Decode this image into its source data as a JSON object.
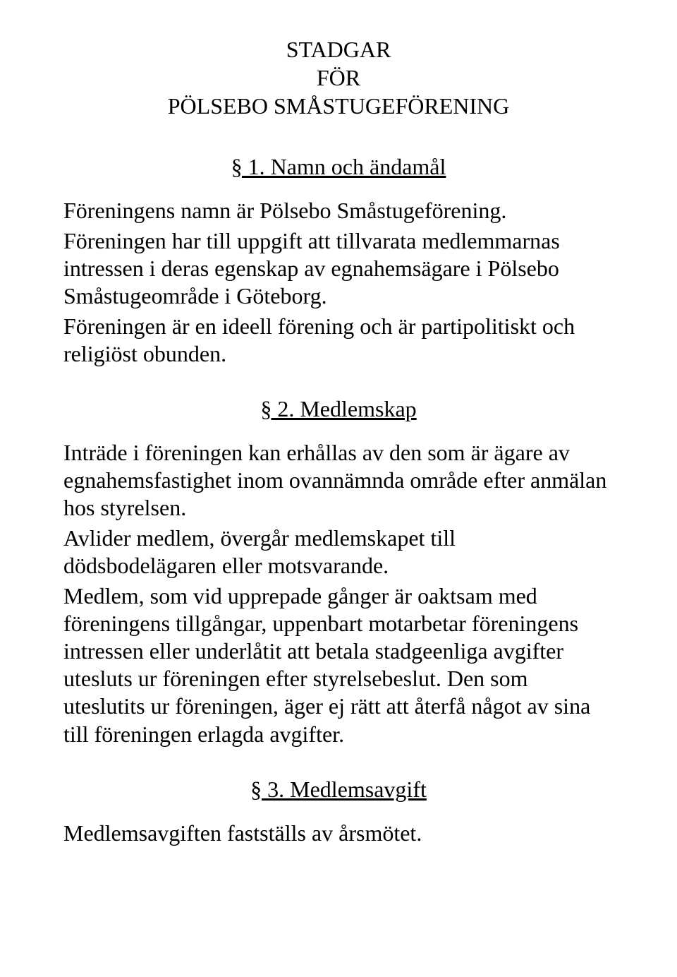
{
  "colors": {
    "background": "#ffffff",
    "text": "#000000"
  },
  "typography": {
    "font_family": "Times New Roman",
    "body_fontsize_pt": 24,
    "line_height": 1.22
  },
  "title": {
    "line1": "STADGAR",
    "line2": "FÖR",
    "line3": "PÖLSEBO SMÅSTUGEFÖRENING"
  },
  "sections": {
    "s1": {
      "heading": "§ 1. Namn och ändamål",
      "p1": "Föreningens namn är Pölsebo Småstugeförening.",
      "p2": "Föreningen har till uppgift att tillvarata medlemmarnas intressen i deras egenskap av egnahemsägare i Pölsebo Småstugeområde i Göteborg.",
      "p3": "Föreningen är en ideell förening och är partipolitiskt och religiöst obunden."
    },
    "s2": {
      "heading": "§ 2. Medlemskap",
      "p1": "Inträde i föreningen kan erhållas av den som är ägare av egnahemsfastighet inom ovannämnda område efter anmälan hos styrelsen.",
      "p2": "Avlider medlem, övergår medlemskapet till dödsbodelägaren eller motsvarande.",
      "p3": "Medlem, som vid upprepade gånger är oaktsam med föreningens tillgångar, uppenbart motarbetar föreningens intressen eller underlåtit att betala stadgeenliga avgifter utesluts ur föreningen efter styrelsebeslut. Den som uteslutits ur föreningen, äger ej rätt att återfå något av sina till föreningen erlagda avgifter."
    },
    "s3": {
      "heading": "§ 3. Medlemsavgift",
      "p1": "Medlemsavgiften fastställs av årsmötet."
    }
  }
}
